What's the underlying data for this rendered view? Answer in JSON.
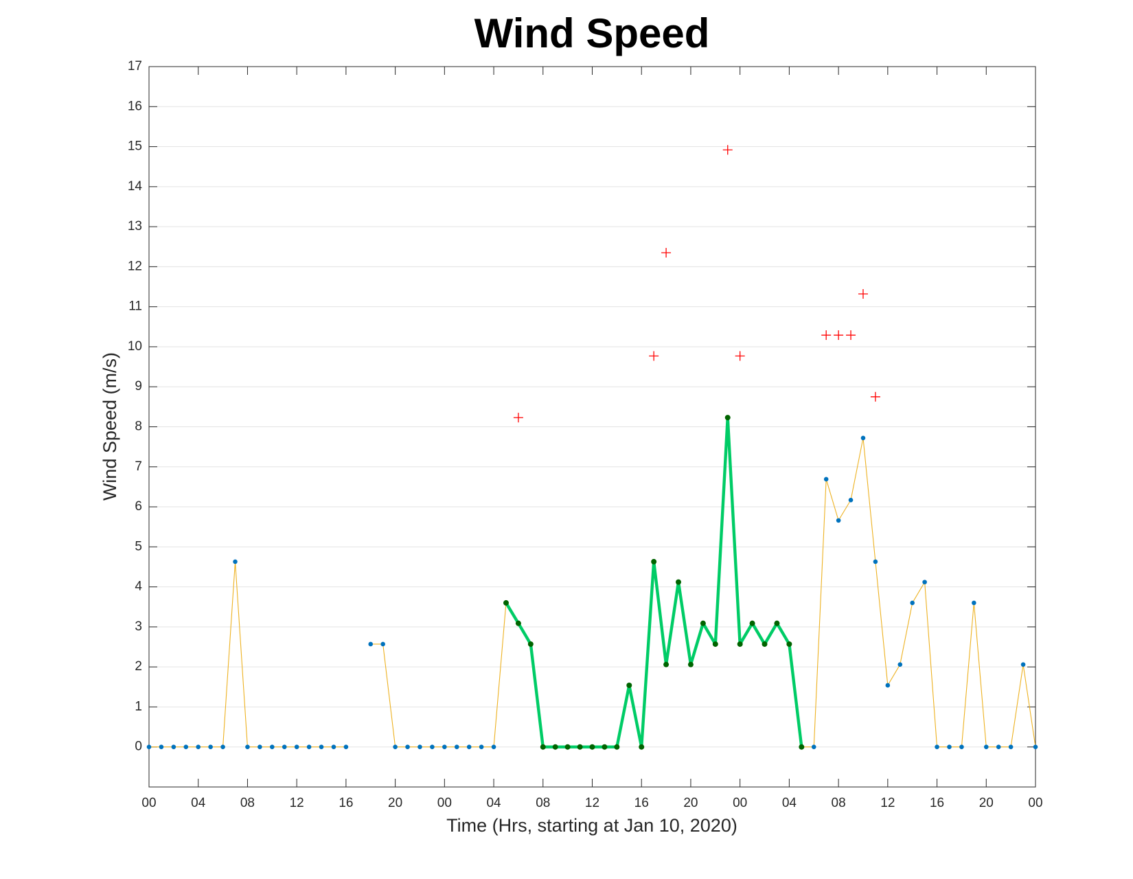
{
  "chart_data": {
    "type": "line",
    "title": "Wind Speed",
    "x_label": "Time (Hrs, starting at Jan 10, 2020)",
    "y_label": "Wind Speed (m/s)",
    "x": [
      0,
      1,
      2,
      3,
      4,
      5,
      6,
      7,
      8,
      9,
      10,
      11,
      12,
      13,
      14,
      15,
      16,
      17,
      18,
      19,
      20,
      21,
      22,
      23,
      24,
      25,
      26,
      27,
      28,
      29,
      30,
      31,
      32,
      33,
      34,
      35,
      36,
      37,
      38,
      39,
      40,
      41,
      42,
      43,
      44,
      45,
      46,
      47,
      48,
      49,
      50,
      51,
      52,
      53,
      54,
      55,
      56,
      57,
      58,
      59,
      60,
      61,
      62,
      63,
      64,
      65,
      66,
      67,
      68,
      69,
      70,
      71,
      72
    ],
    "xlim": [
      0,
      72
    ],
    "xticks": [
      {
        "value": 0,
        "label": "00"
      },
      {
        "value": 4,
        "label": "04"
      },
      {
        "value": 8,
        "label": "08"
      },
      {
        "value": 12,
        "label": "12"
      },
      {
        "value": 16,
        "label": "16"
      },
      {
        "value": 20,
        "label": "20"
      },
      {
        "value": 24,
        "label": "00"
      },
      {
        "value": 28,
        "label": "04"
      },
      {
        "value": 32,
        "label": "08"
      },
      {
        "value": 36,
        "label": "12"
      },
      {
        "value": 40,
        "label": "16"
      },
      {
        "value": 44,
        "label": "20"
      },
      {
        "value": 48,
        "label": "00"
      },
      {
        "value": 52,
        "label": "04"
      },
      {
        "value": 56,
        "label": "08"
      },
      {
        "value": 60,
        "label": "12"
      },
      {
        "value": 64,
        "label": "16"
      },
      {
        "value": 68,
        "label": "20"
      },
      {
        "value": 72,
        "label": "00"
      }
    ],
    "ylim": [
      -1,
      17
    ],
    "yticks": [
      0,
      1,
      2,
      3,
      4,
      5,
      6,
      7,
      8,
      9,
      10,
      11,
      12,
      13,
      14,
      15,
      16,
      17
    ],
    "grid": "y",
    "series": [
      {
        "color": "#EDB120",
        "marker_color": "#0072BD",
        "marker": "dot",
        "line_width": 1,
        "values": [
          0,
          0,
          0,
          0,
          0,
          0,
          0,
          4.63,
          0,
          0,
          0,
          0,
          0,
          0,
          0,
          0,
          0,
          null,
          2.57,
          2.57,
          0,
          0,
          0,
          0,
          0,
          0,
          0,
          0,
          0,
          3.6,
          3.09,
          2.57,
          0,
          0,
          0,
          0,
          0,
          0,
          0,
          1.54,
          0,
          4.63,
          2.06,
          4.12,
          2.06,
          3.09,
          2.57,
          8.23,
          2.57,
          3.09,
          2.57,
          3.09,
          2.57,
          0,
          0,
          6.69,
          5.66,
          6.17,
          7.72,
          4.63,
          1.54,
          2.06,
          3.6,
          4.12,
          0,
          0,
          0,
          3.6,
          0,
          0,
          0,
          2.06,
          0
        ]
      },
      {
        "color": "#00CC66",
        "marker_color": "#006400",
        "marker": "dot",
        "line_width": 4,
        "values": [
          null,
          null,
          null,
          null,
          null,
          null,
          null,
          null,
          null,
          null,
          null,
          null,
          null,
          null,
          null,
          null,
          null,
          null,
          null,
          null,
          null,
          null,
          null,
          null,
          null,
          null,
          null,
          null,
          null,
          3.6,
          3.09,
          2.57,
          0,
          0,
          0,
          0,
          0,
          0,
          0,
          1.54,
          0,
          4.63,
          2.06,
          4.12,
          2.06,
          3.09,
          2.57,
          8.23,
          2.57,
          3.09,
          2.57,
          3.09,
          2.57,
          0,
          null,
          null,
          null,
          null,
          null,
          null,
          null,
          null,
          null,
          null,
          null,
          null,
          null,
          null,
          null,
          null,
          null,
          null,
          null
        ]
      },
      {
        "color": "#FF0000",
        "marker_color": "#FF0000",
        "marker": "+",
        "line_width": 0,
        "values": [
          null,
          null,
          null,
          null,
          null,
          null,
          null,
          null,
          null,
          null,
          null,
          null,
          null,
          null,
          null,
          null,
          null,
          null,
          null,
          null,
          null,
          null,
          null,
          null,
          null,
          null,
          null,
          null,
          null,
          null,
          8.23,
          null,
          null,
          null,
          null,
          null,
          null,
          null,
          null,
          null,
          null,
          9.77,
          12.35,
          null,
          null,
          null,
          null,
          14.92,
          9.77,
          null,
          null,
          null,
          null,
          null,
          null,
          10.29,
          10.29,
          10.29,
          11.32,
          8.75,
          null,
          null,
          null,
          null,
          null,
          null,
          null,
          null,
          null,
          null,
          null,
          null,
          null
        ]
      }
    ]
  }
}
